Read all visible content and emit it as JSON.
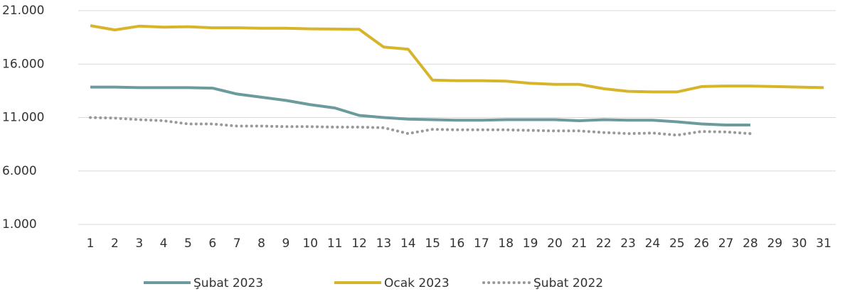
{
  "chart_data": {
    "type": "line",
    "categories": [
      "1",
      "2",
      "3",
      "4",
      "5",
      "6",
      "7",
      "8",
      "9",
      "10",
      "11",
      "12",
      "13",
      "14",
      "15",
      "16",
      "17",
      "18",
      "19",
      "20",
      "21",
      "22",
      "23",
      "24",
      "25",
      "26",
      "27",
      "28",
      "29",
      "30",
      "31"
    ],
    "series": [
      {
        "name": "Şubat 2023",
        "color": "#6b9b9d",
        "style": "solid",
        "values": [
          13850,
          13850,
          13800,
          13800,
          13800,
          13750,
          13200,
          12900,
          12600,
          12200,
          11900,
          11200,
          11000,
          10850,
          10800,
          10750,
          10750,
          10800,
          10800,
          10800,
          10700,
          10800,
          10750,
          10750,
          10600,
          10400,
          10300,
          10300,
          null,
          null,
          null
        ]
      },
      {
        "name": "Ocak 2023",
        "color": "#d8b42a",
        "style": "solid",
        "values": [
          19600,
          19200,
          19550,
          19450,
          19500,
          19400,
          19400,
          19350,
          19350,
          19300,
          19280,
          19250,
          17600,
          17400,
          14500,
          14450,
          14450,
          14400,
          14200,
          14100,
          14100,
          13700,
          13450,
          13400,
          13400,
          13900,
          13950,
          13950,
          13900,
          13850,
          13800
        ]
      },
      {
        "name": "Şubat 2022",
        "color": "#999999",
        "style": "dotted",
        "values": [
          11000,
          10950,
          10800,
          10700,
          10400,
          10400,
          10200,
          10200,
          10150,
          10150,
          10100,
          10100,
          10050,
          9500,
          9900,
          9850,
          9850,
          9850,
          9800,
          9750,
          9750,
          9600,
          9500,
          9550,
          9350,
          9700,
          9650,
          9500,
          null,
          null,
          null
        ]
      }
    ],
    "ylim": [
      1000,
      21000
    ],
    "yticks": [
      {
        "value": 1000,
        "label": "1.000"
      },
      {
        "value": 6000,
        "label": "6.000"
      },
      {
        "value": 11000,
        "label": "11.000"
      },
      {
        "value": 16000,
        "label": "16.000"
      },
      {
        "value": 21000,
        "label": "21.000"
      }
    ],
    "grid": true,
    "legend": "bottom"
  }
}
